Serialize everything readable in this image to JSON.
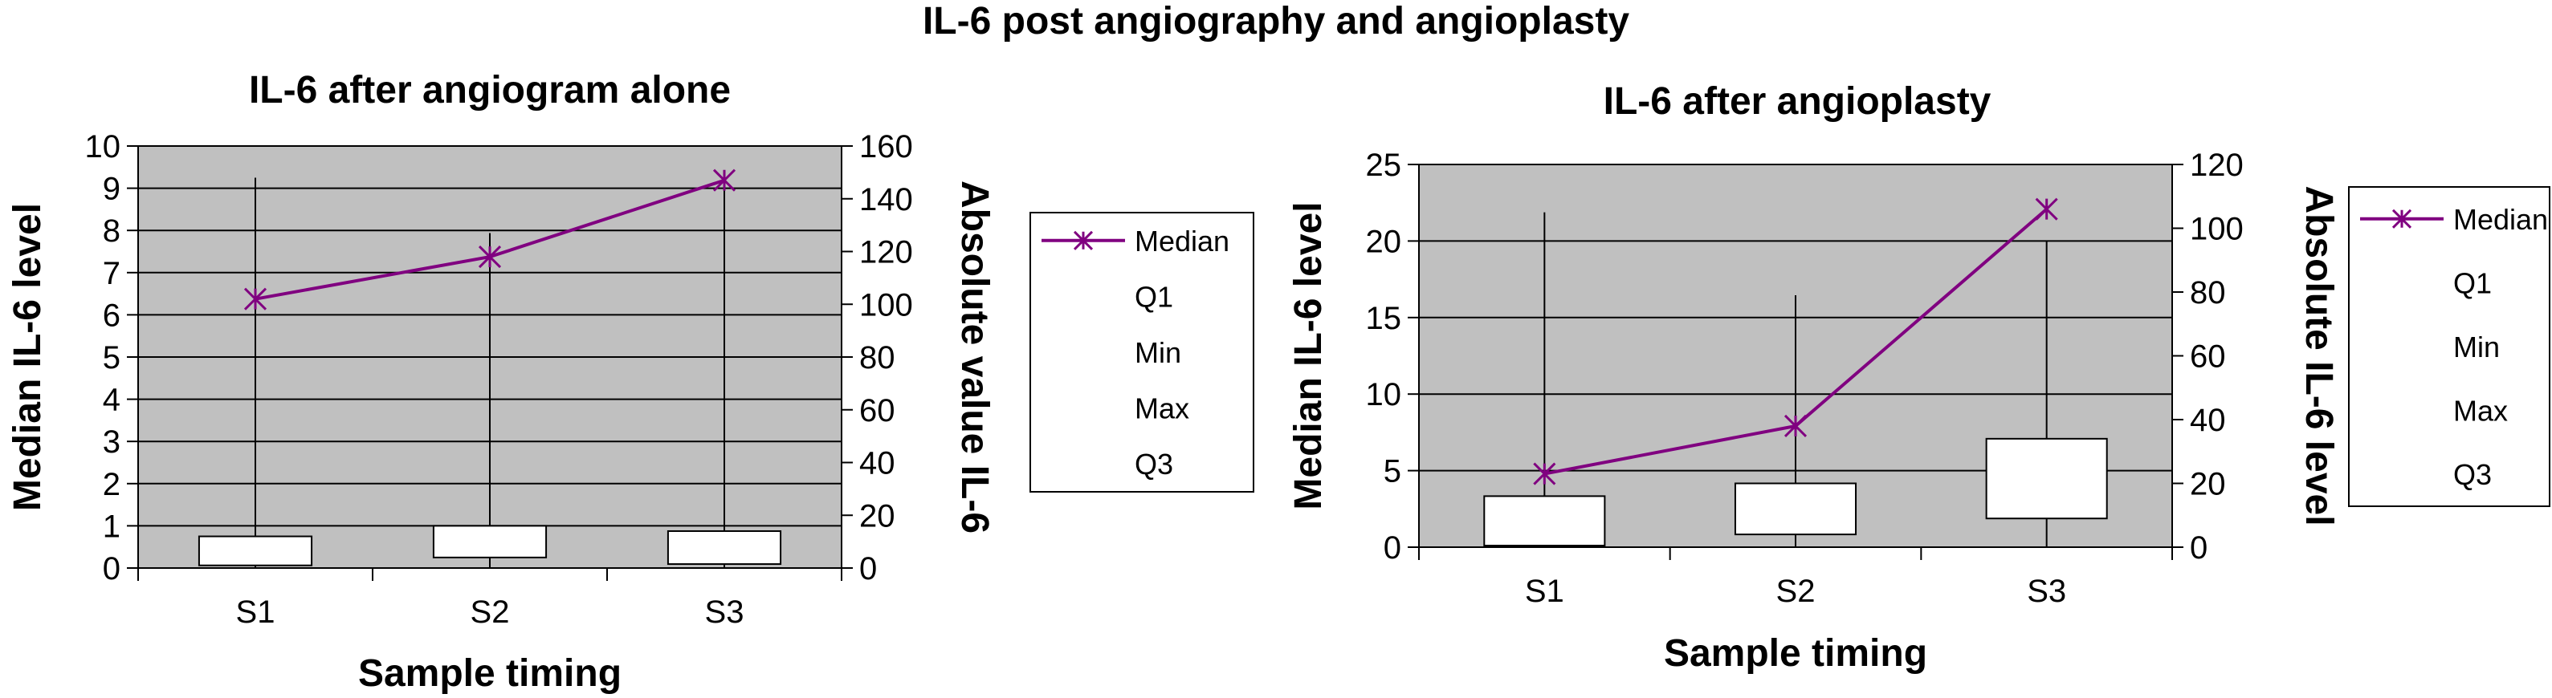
{
  "figure_title": "IL-6 post angiography and angioplasty",
  "chart_data": [
    {
      "type": "box",
      "title": "IL-6 after angiogram alone",
      "xlabel": "Sample timing",
      "ylabel": "Median IL-6 level",
      "y2label": "Absolute value IL-6",
      "categories": [
        "S1",
        "S2",
        "S3"
      ],
      "ylim": [
        0,
        10
      ],
      "yticks": [
        "0",
        "1",
        "2",
        "3",
        "4",
        "5",
        "6",
        "7",
        "8",
        "9",
        "10"
      ],
      "y2lim": [
        0,
        160
      ],
      "y2ticks": [
        "0",
        "20",
        "40",
        "60",
        "80",
        "100",
        "120",
        "140",
        "160"
      ],
      "grid": true,
      "plot_background": "#c0c0c0",
      "median_color": "#800080",
      "legend_position": "right",
      "legend": [
        "Median",
        "Q1",
        "Min",
        "Max",
        "Q3"
      ],
      "series": [
        {
          "name": "Median",
          "axis": "y2",
          "values": [
            102,
            118,
            147
          ]
        },
        {
          "name": "Q1",
          "axis": "y2",
          "values": [
            1,
            4,
            1.5
          ]
        },
        {
          "name": "Min",
          "axis": "y2",
          "values": [
            0,
            0,
            0
          ]
        },
        {
          "name": "Max",
          "axis": "y2",
          "values": [
            148,
            127,
            146
          ]
        },
        {
          "name": "Q3",
          "axis": "y2",
          "values": [
            12,
            16,
            14
          ]
        }
      ]
    },
    {
      "type": "box",
      "title": "IL-6 after angioplasty",
      "xlabel": "Sample timing",
      "ylabel": "Median IL-6 level",
      "y2label": "Absolute IL-6 level",
      "categories": [
        "S1",
        "S2",
        "S3"
      ],
      "ylim": [
        0,
        25
      ],
      "yticks": [
        "0",
        "5",
        "10",
        "15",
        "20",
        "25"
      ],
      "y2lim": [
        0,
        120
      ],
      "y2ticks": [
        "0",
        "20",
        "40",
        "60",
        "80",
        "100",
        "120"
      ],
      "grid": true,
      "plot_background": "#c0c0c0",
      "median_color": "#800080",
      "legend_position": "right",
      "legend": [
        "Median",
        "Q1",
        "Min",
        "Max",
        "Q3"
      ],
      "series": [
        {
          "name": "Median",
          "axis": "y2",
          "values": [
            23,
            38,
            106
          ]
        },
        {
          "name": "Q1",
          "axis": "y2",
          "values": [
            0.5,
            4,
            9
          ]
        },
        {
          "name": "Min",
          "axis": "y2",
          "values": [
            0,
            0,
            0
          ]
        },
        {
          "name": "Max",
          "axis": "y2",
          "values": [
            105,
            79,
            96
          ]
        },
        {
          "name": "Q3",
          "axis": "y2",
          "values": [
            16,
            20,
            34
          ]
        }
      ]
    }
  ]
}
